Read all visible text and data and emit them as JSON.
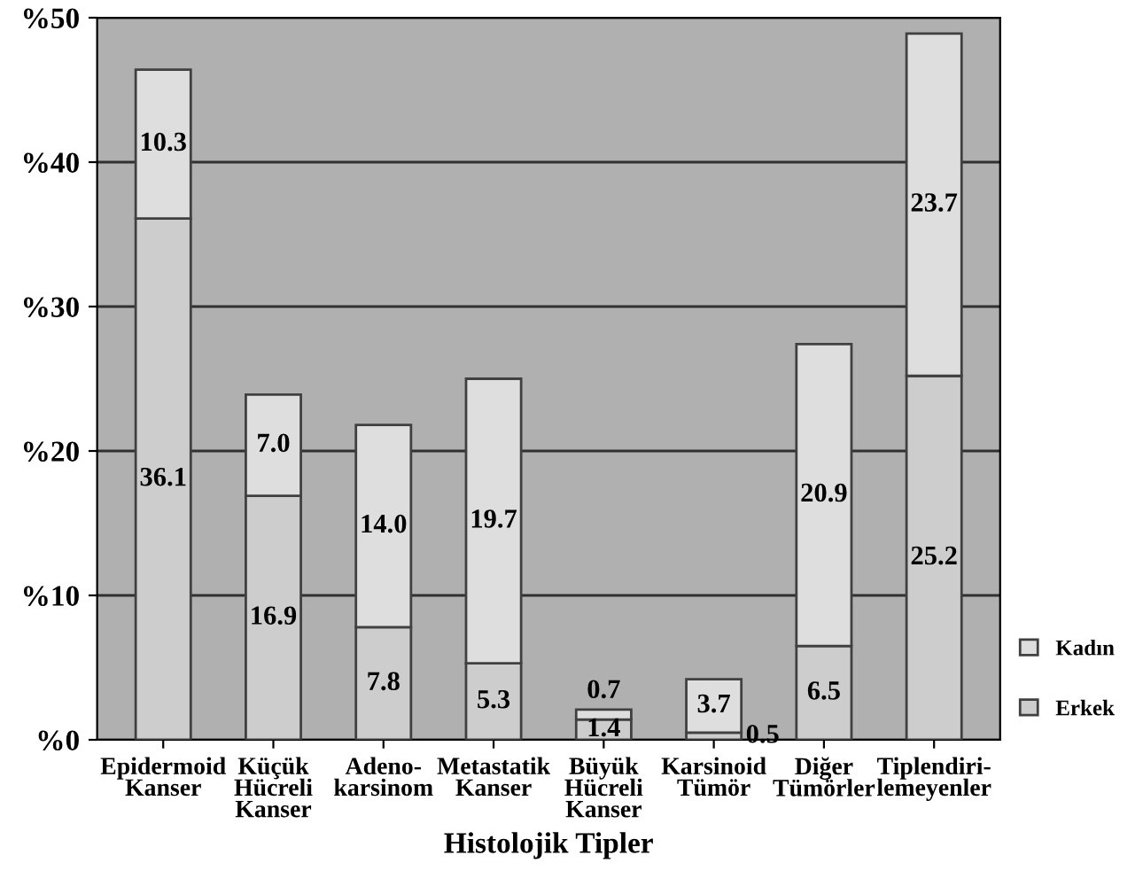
{
  "chart_data": {
    "type": "bar",
    "stacked": true,
    "xlabel": "Histolojik Tipler",
    "categories": [
      "Epidermoid\nKanser",
      "Küçük\nHücreli\nKanser",
      "Adeno-\nkarsinom",
      "Metastatik\nKanser",
      "Büyük\nHücreli\nKanser",
      "Karsinoid\nTümör",
      "Diğer\nTümörler",
      "Tiplendiri-\nlemeyenler"
    ],
    "series": [
      {
        "name": "Erkek",
        "color": "#cdcdcd",
        "values": [
          36.1,
          16.9,
          7.8,
          5.3,
          1.4,
          0.5,
          6.5,
          25.2
        ],
        "value_labels": [
          "36.1",
          "16.9",
          "7.8",
          "5.3",
          "1.4",
          "0.5",
          "6.5",
          "25.2"
        ]
      },
      {
        "name": "Kadın",
        "color": "#dedede",
        "values": [
          10.3,
          7.0,
          14.0,
          19.7,
          0.7,
          3.7,
          20.9,
          23.7
        ],
        "value_labels": [
          "10.3",
          "7.0",
          "14.0",
          "19.7",
          "0.7",
          "3.7",
          "20.9",
          "23.7"
        ]
      }
    ],
    "ylim": [
      0,
      50
    ],
    "yticks": [
      {
        "value": 0,
        "label": "%0"
      },
      {
        "value": 10,
        "label": "%10"
      },
      {
        "value": 20,
        "label": "%20"
      },
      {
        "value": 30,
        "label": "%30"
      },
      {
        "value": 40,
        "label": "%40"
      },
      {
        "value": 50,
        "label": "%50"
      }
    ],
    "grid": "y",
    "legend": "bottom right"
  }
}
